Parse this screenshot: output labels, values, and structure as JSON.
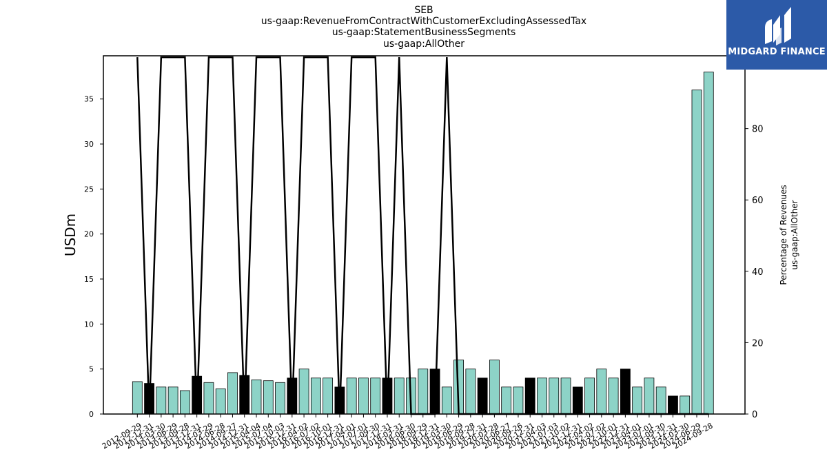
{
  "title_lines": [
    "SEB",
    "us-gaap:RevenueFromContractWithCustomerExcludingAssessedTax",
    "us-gaap:StatementBusinessSegments",
    "us-gaap:AllOther"
  ],
  "logo": {
    "text": "MIDGARD FINANCE",
    "bg": "#2c5aa8"
  },
  "chart_data": {
    "type": "bar",
    "ylabel": "USDm",
    "y2label_lines": [
      "Percentage of Revenues",
      "us-gaap:AllOther"
    ],
    "ylim": [
      0,
      39.8
    ],
    "y2lim": [
      0,
      100.4
    ],
    "yticks": [
      0,
      5,
      10,
      15,
      20,
      25,
      30,
      35
    ],
    "y2ticks": [
      0,
      20,
      40,
      60,
      80,
      100
    ],
    "grid": false,
    "colors": {
      "bar_teal": "#8dd3c7",
      "bar_black": "#000000",
      "line": "#000000"
    },
    "categories": [
      "2012-09-29",
      "2012-12-31",
      "2013-03-30",
      "2013-06-29",
      "2013-09-28",
      "2013-12-31",
      "2014-03-29",
      "2014-06-28",
      "2014-09-27",
      "2014-12-31",
      "2015-04-04",
      "2015-07-04",
      "2015-10-03",
      "2015-12-31",
      "2016-04-02",
      "2016-07-02",
      "2016-10-01",
      "2016-12-31",
      "2017-04-01",
      "2017-07-01",
      "2017-09-30",
      "2017-12-31",
      "2018-03-31",
      "2018-06-30",
      "2018-09-29",
      "2018-12-31",
      "2019-03-30",
      "2019-06-29",
      "2019-09-28",
      "2019-12-31",
      "2020-03-28",
      "2020-06-27",
      "2020-09-26",
      "2020-12-31",
      "2021-04-03",
      "2021-07-03",
      "2021-10-02",
      "2021-12-31",
      "2022-04-02",
      "2022-07-02",
      "2022-10-01",
      "2022-12-31",
      "2023-04-01",
      "2023-07-01",
      "2023-09-30",
      "2023-12-31",
      "2024-03-30",
      "2024-06-29",
      "2024-09-28"
    ],
    "values": [
      3.6,
      3.4,
      3.0,
      3.0,
      2.6,
      4.2,
      3.5,
      2.8,
      4.6,
      4.3,
      3.8,
      3.7,
      3.5,
      4.0,
      5.0,
      4.0,
      4.0,
      3.0,
      4.0,
      4.0,
      4.0,
      4.0,
      4.0,
      4.0,
      5.0,
      5.0,
      3.0,
      6.0,
      5.0,
      4.0,
      6.0,
      3.0,
      3.0,
      4.0,
      4.0,
      4.0,
      4.0,
      3.0,
      4.0,
      5.0,
      4.0,
      5.0,
      3.0,
      4.0,
      3.0,
      2.0,
      2.0,
      36.0,
      38.0
    ],
    "bar_colors": [
      "teal",
      "black",
      "teal",
      "teal",
      "teal",
      "black",
      "teal",
      "teal",
      "teal",
      "black",
      "teal",
      "teal",
      "teal",
      "black",
      "teal",
      "teal",
      "teal",
      "black",
      "teal",
      "teal",
      "teal",
      "black",
      "teal",
      "teal",
      "teal",
      "black",
      "teal",
      "teal",
      "teal",
      "black",
      "teal",
      "teal",
      "teal",
      "black",
      "teal",
      "teal",
      "teal",
      "black",
      "teal",
      "teal",
      "teal",
      "black",
      "teal",
      "teal",
      "teal",
      "black",
      "teal",
      "teal",
      "teal"
    ],
    "percentage": [
      100,
      0,
      100,
      100,
      100,
      0,
      100,
      100,
      100,
      0,
      100,
      100,
      100,
      0,
      100,
      100,
      100,
      0,
      100,
      100,
      100,
      0,
      100,
      0,
      0,
      0,
      100,
      0,
      0,
      0,
      0,
      0,
      0,
      0,
      0,
      0,
      0,
      0,
      0,
      0,
      0,
      0,
      0,
      0,
      0,
      0,
      0,
      0,
      0
    ]
  }
}
